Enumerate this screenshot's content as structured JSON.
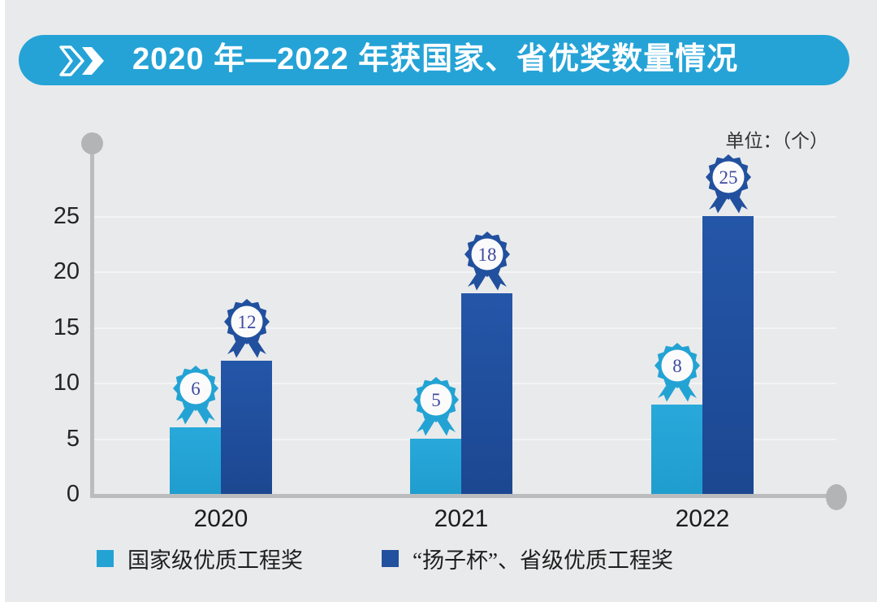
{
  "header": {
    "title": "2020 年—2022 年获国家、省优奖数量情况",
    "chevron_icon": "double-chevron-right"
  },
  "chart_data": {
    "type": "bar",
    "title": "2020 年—2022 年获国家、省优奖数量情况",
    "unit_label": "单位：（个）",
    "categories": [
      "2020",
      "2021",
      "2022"
    ],
    "series": [
      {
        "name": "国家级优质工程奖",
        "color": "#23A3D4",
        "gradient": [
          "#28A9DA",
          "#1F9DCE"
        ],
        "values": [
          6,
          5,
          8
        ]
      },
      {
        "name": "“扬子杯”、省级优质工程奖",
        "color": "#21509E",
        "gradient": [
          "#2456A8",
          "#1C4791"
        ],
        "values": [
          12,
          18,
          25
        ]
      }
    ],
    "ylim": [
      0,
      25
    ],
    "yticks": [
      0,
      5,
      10,
      15,
      20,
      25
    ],
    "grid": true,
    "legend_position": "bottom",
    "value_badges": true,
    "badge_number_color": "#3E4A9F"
  },
  "colors": {
    "banner": "#25A3D6",
    "background": "#E9EAEB",
    "axis": "#BBBCBE",
    "gridline": "#F3F4F6"
  }
}
